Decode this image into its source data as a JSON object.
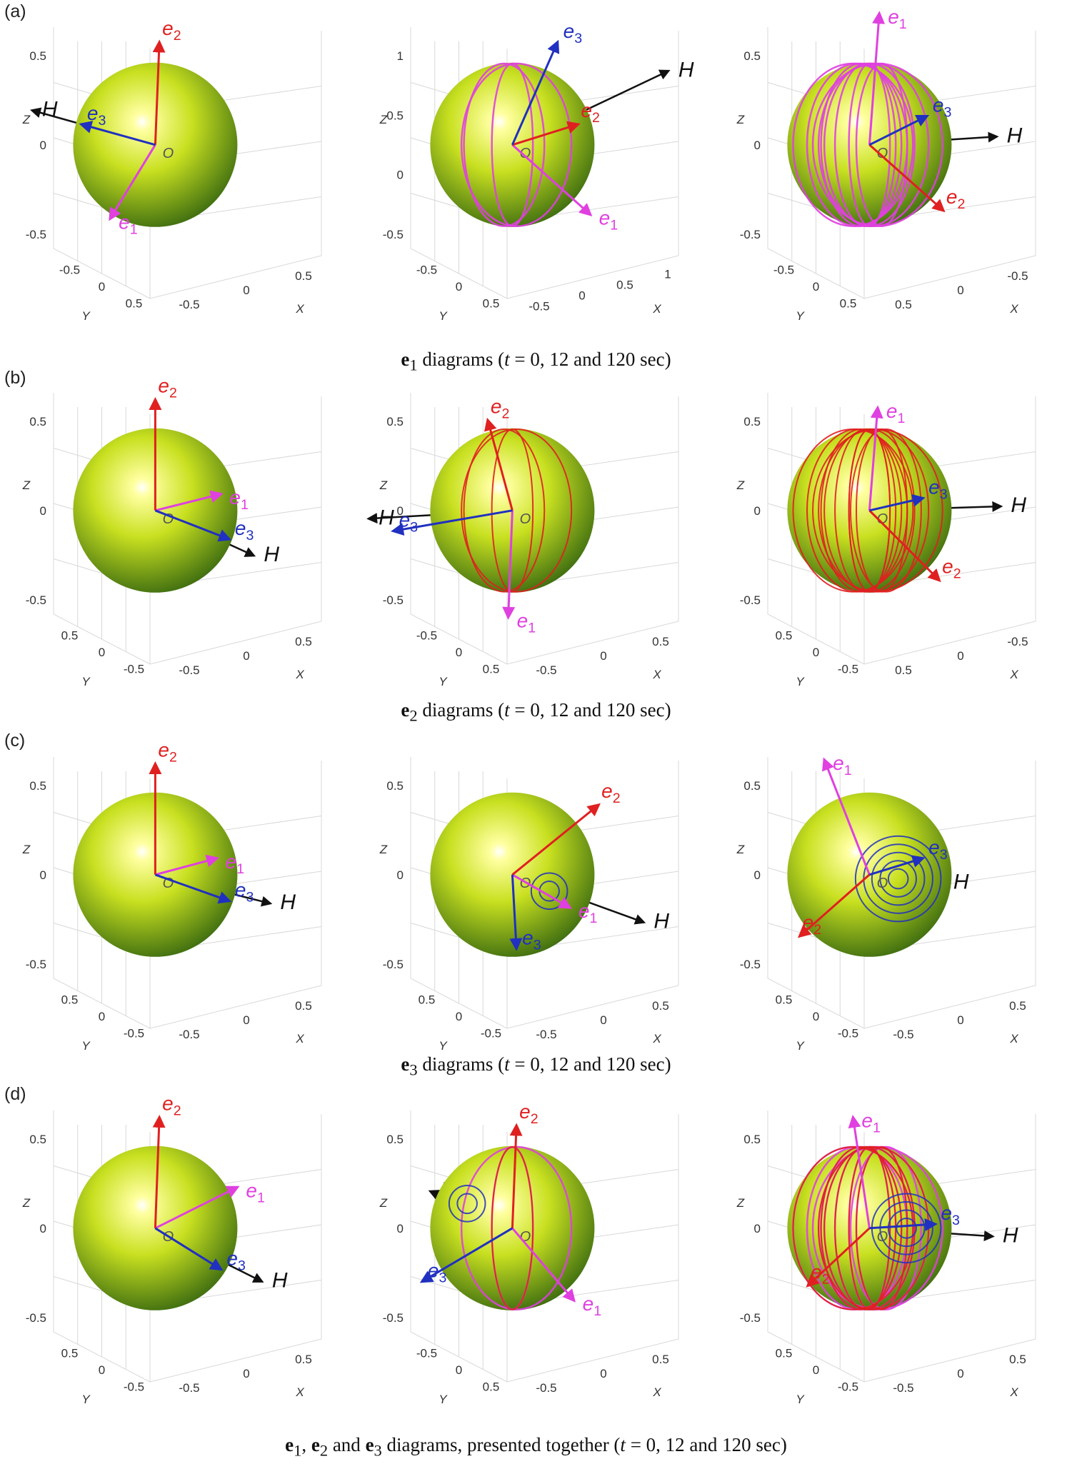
{
  "row_labels": [
    "(a)",
    "(b)",
    "(c)",
    "(d)"
  ],
  "captions": [
    {
      "vec": "e",
      "sub": "1",
      "rest": " diagrams (",
      "t": "t",
      "tail": " = 0, 12 and 120 sec)"
    },
    {
      "vec": "e",
      "sub": "2",
      "rest": " diagrams (",
      "t": "t",
      "tail": " = 0, 12 and 120 sec)"
    },
    {
      "vec": "e",
      "sub": "3",
      "rest": " diagrams (",
      "t": "t",
      "tail": " = 0, 12 and 120 sec)"
    },
    {
      "lead": "e",
      "s1": "1",
      "m1": ", ",
      "v2": "e",
      "s2": "2",
      "m2": " and ",
      "v3": "e",
      "s3": "3",
      "rest": " diagrams, presented together (",
      "t": "t",
      "tail": " = 0, 12 and 120 sec)"
    }
  ],
  "axis_names": {
    "x": "X",
    "y": "Y",
    "z": "Z"
  },
  "origin_label": "O",
  "vector_labels": {
    "e1": "e",
    "e1_sub": "1",
    "e2": "e",
    "e2_sub": "2",
    "e3": "e",
    "e3_sub": "3",
    "H": "H"
  },
  "colors": {
    "e1": "#e040e0",
    "e2": "#e02020",
    "e3": "#2030c0",
    "H": "#111111",
    "sphere_light": "#ffffa0",
    "sphere_mid": "#c8e020",
    "sphere_dark": "#3a6a10"
  },
  "panels": [
    {
      "row": 0,
      "col": 0,
      "z_ticks": [
        "0.5",
        "0",
        "-0.5"
      ],
      "y_ticks": [
        "-0.5",
        "0",
        "0.5"
      ],
      "x_ticks": [
        "-0.5",
        "0",
        "0.5"
      ],
      "trace": "none"
    },
    {
      "row": 0,
      "col": 1,
      "z_ticks": [
        "1",
        "0.5",
        "0",
        "-0.5"
      ],
      "y_ticks": [
        "-0.5",
        "0",
        "0.5"
      ],
      "x_ticks": [
        "-0.5",
        "0",
        "0.5",
        "1"
      ],
      "trace": "e1"
    },
    {
      "row": 0,
      "col": 2,
      "z_ticks": [
        "0.5",
        "0",
        "-0.5"
      ],
      "y_ticks": [
        "-0.5",
        "0",
        "0.5"
      ],
      "x_ticks": [
        "0.5",
        "0",
        "-0.5"
      ],
      "trace": "e1"
    },
    {
      "row": 1,
      "col": 0,
      "z_ticks": [
        "0.5",
        "0",
        "-0.5"
      ],
      "y_ticks": [
        "0.5",
        "0",
        "-0.5"
      ],
      "x_ticks": [
        "-0.5",
        "0",
        "0.5"
      ],
      "trace": "none"
    },
    {
      "row": 1,
      "col": 1,
      "z_ticks": [
        "0.5",
        "0",
        "-0.5"
      ],
      "y_ticks": [
        "-0.5",
        "0",
        "0.5"
      ],
      "x_ticks": [
        "-0.5",
        "0",
        "0.5"
      ],
      "trace": "e2"
    },
    {
      "row": 1,
      "col": 2,
      "z_ticks": [
        "0.5",
        "0",
        "-0.5"
      ],
      "y_ticks": [
        "0.5",
        "0",
        "-0.5"
      ],
      "x_ticks": [
        "0.5",
        "0",
        "-0.5"
      ],
      "trace": "e2"
    },
    {
      "row": 2,
      "col": 0,
      "z_ticks": [
        "0.5",
        "0",
        "-0.5"
      ],
      "y_ticks": [
        "0.5",
        "0",
        "-0.5"
      ],
      "x_ticks": [
        "-0.5",
        "0",
        "0.5"
      ],
      "trace": "none"
    },
    {
      "row": 2,
      "col": 1,
      "z_ticks": [
        "0.5",
        "0",
        "-0.5"
      ],
      "y_ticks": [
        "0.5",
        "0",
        "-0.5"
      ],
      "x_ticks": [
        "-0.5",
        "0",
        "0.5"
      ],
      "trace": "e3"
    },
    {
      "row": 2,
      "col": 2,
      "z_ticks": [
        "0.5",
        "0",
        "-0.5"
      ],
      "y_ticks": [
        "0.5",
        "0",
        "-0.5"
      ],
      "x_ticks": [
        "-0.5",
        "0",
        "0.5"
      ],
      "trace": "e3"
    },
    {
      "row": 3,
      "col": 0,
      "z_ticks": [
        "0.5",
        "0",
        "-0.5"
      ],
      "y_ticks": [
        "0.5",
        "0",
        "-0.5"
      ],
      "x_ticks": [
        "-0.5",
        "0",
        "0.5"
      ],
      "trace": "none"
    },
    {
      "row": 3,
      "col": 1,
      "z_ticks": [
        "0.5",
        "0",
        "-0.5"
      ],
      "y_ticks": [
        "-0.5",
        "0",
        "0.5"
      ],
      "x_ticks": [
        "-0.5",
        "0",
        "0.5"
      ],
      "trace": "all"
    },
    {
      "row": 3,
      "col": 2,
      "z_ticks": [
        "0.5",
        "0",
        "-0.5"
      ],
      "y_ticks": [
        "0.5",
        "0",
        "-0.5"
      ],
      "x_ticks": [
        "-0.5",
        "0",
        "0.5"
      ],
      "trace": "all"
    }
  ]
}
